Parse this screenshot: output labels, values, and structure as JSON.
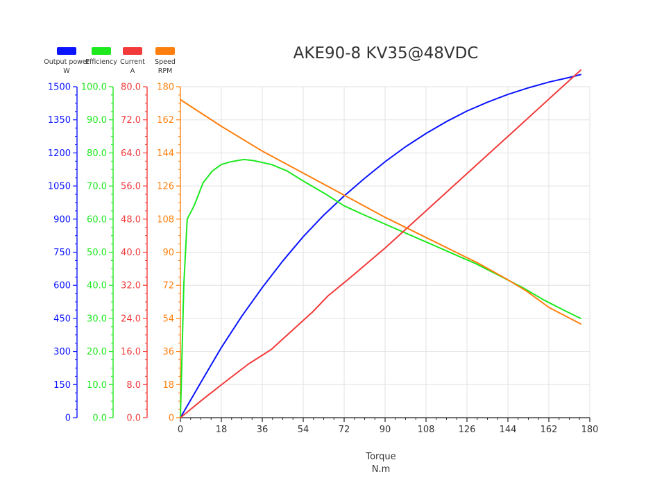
{
  "chart_data": {
    "type": "line",
    "title": "AKE90-8 KV35@48VDC",
    "xlabel": "Torque",
    "xunit": "N.m",
    "xlim": [
      0,
      180
    ],
    "xticks": [
      "0",
      "18",
      "36",
      "54",
      "72",
      "90",
      "108",
      "126",
      "144",
      "162",
      "180"
    ],
    "grid": true,
    "legend_position": "top-left",
    "axes": [
      {
        "id": "power",
        "label": "Output power",
        "unit": "W",
        "color": "#0a14ff",
        "ylim": [
          0,
          1500
        ],
        "ticks": [
          "0",
          "150",
          "300",
          "450",
          "600",
          "750",
          "900",
          "1050",
          "1200",
          "1350",
          "1500"
        ]
      },
      {
        "id": "eff",
        "label": "Efficiency",
        "unit": "",
        "color": "#1ee81e",
        "ylim": [
          0,
          100
        ],
        "ticks": [
          "0.0",
          "10.0",
          "20.0",
          "30.0",
          "40.0",
          "50.0",
          "60.0",
          "70.0",
          "80.0",
          "90.0",
          "100.0"
        ]
      },
      {
        "id": "current",
        "label": "Current",
        "unit": "A",
        "color": "#f23a3a",
        "ylim": [
          0,
          80
        ],
        "ticks": [
          "0.0",
          "8.0",
          "16.0",
          "24.0",
          "32.0",
          "40.0",
          "48.0",
          "56.0",
          "64.0",
          "72.0",
          "80.0"
        ]
      },
      {
        "id": "speed",
        "label": "Speed",
        "unit": "RPM",
        "color": "#ff7f0e",
        "ylim": [
          0,
          180
        ],
        "ticks": [
          "0",
          "18",
          "36",
          "54",
          "72",
          "90",
          "108",
          "126",
          "144",
          "162",
          "180"
        ]
      }
    ],
    "series": [
      {
        "name": "Output power",
        "axis": "power",
        "color": "#0a14ff",
        "x": [
          0,
          9,
          18,
          27,
          36,
          45,
          54,
          63,
          72,
          81,
          90,
          99,
          108,
          117,
          126,
          135,
          144,
          153,
          162,
          171,
          176
        ],
        "y": [
          0,
          160,
          318,
          460,
          590,
          710,
          820,
          918,
          1005,
          1085,
          1160,
          1228,
          1288,
          1342,
          1390,
          1430,
          1465,
          1495,
          1521,
          1542,
          1555
        ]
      },
      {
        "name": "Efficiency",
        "axis": "eff",
        "color": "#1ee81e",
        "x": [
          0,
          1.5,
          3,
          6,
          10,
          14,
          18,
          22,
          26,
          28,
          32,
          40,
          47,
          54,
          64,
          72,
          80,
          90,
          100,
          110,
          120,
          130,
          140,
          150,
          160,
          170,
          176
        ],
        "y": [
          0,
          40,
          60,
          64,
          71,
          74.5,
          76.5,
          77.3,
          77.8,
          78,
          77.7,
          76.5,
          74.5,
          71.5,
          67.5,
          64,
          61.5,
          58.5,
          55.5,
          52.5,
          49.5,
          46.5,
          43,
          39.5,
          35.5,
          32,
          30
        ]
      },
      {
        "name": "Current",
        "axis": "current",
        "color": "#f23a3a",
        "x": [
          0,
          10,
          20,
          30,
          40,
          50,
          58,
          65,
          75,
          90,
          105,
          120,
          135,
          150,
          165,
          176
        ],
        "y": [
          0,
          4.5,
          8.8,
          13,
          16.5,
          21.5,
          25.5,
          29.5,
          34,
          41,
          48.5,
          56,
          63.5,
          71,
          78.5,
          84
        ]
      },
      {
        "name": "Speed",
        "axis": "speed",
        "color": "#ff7f0e",
        "x": [
          0,
          18,
          36,
          54,
          72,
          90,
          108,
          126,
          131,
          144,
          152,
          162,
          176
        ],
        "y": [
          173,
          158.5,
          145,
          133,
          121,
          109,
          98,
          87,
          84,
          75,
          69,
          60,
          51
        ]
      }
    ]
  }
}
